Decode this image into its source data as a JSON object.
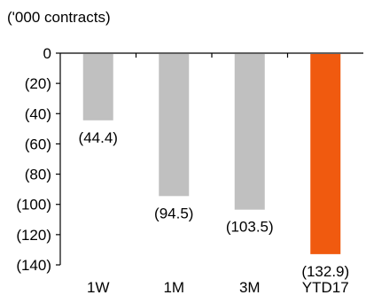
{
  "chart_data": {
    "type": "bar",
    "unit_label": "('000 contracts)",
    "categories": [
      "1W",
      "1M",
      "3M",
      "YTD17"
    ],
    "values": [
      -44.4,
      -94.5,
      -103.5,
      -132.9
    ],
    "data_labels": [
      "(44.4)",
      "(94.5)",
      "(103.5)",
      "(132.9)"
    ],
    "ylim": [
      -140,
      0
    ],
    "yticks": [
      0,
      -20,
      -40,
      -60,
      -80,
      -100,
      -120,
      -140
    ],
    "ytick_labels": [
      "0",
      "(20)",
      "(40)",
      "(60)",
      "(80)",
      "(100)",
      "(120)",
      "(140)"
    ],
    "colors": [
      "#c0c0c0",
      "#c0c0c0",
      "#c0c0c0",
      "#f05a0f"
    ],
    "grid": false,
    "legend": "none"
  }
}
